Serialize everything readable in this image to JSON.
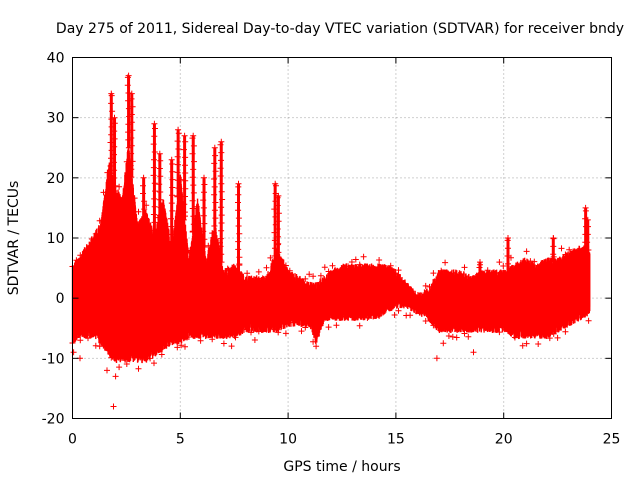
{
  "chart_data": {
    "type": "scatter",
    "title": "Day 275 of 2011, Sidereal Day-to-day VTEC variation (SDTVAR) for receiver bndy",
    "xlabel": "GPS time / hours",
    "ylabel": "SDTVAR / TECUs",
    "xlim": [
      0,
      25
    ],
    "ylim": [
      -20,
      40
    ],
    "x_ticks": [
      "0",
      "5",
      "10",
      "15",
      "20",
      "25"
    ],
    "y_ticks": [
      "-20",
      "-10",
      "0",
      "10",
      "20",
      "30",
      "40"
    ],
    "grid": true,
    "marker": "+",
    "color": "#ff0000",
    "series": [
      {
        "name": "SDTVAR",
        "description_points": "approximate envelope of dense point cloud (hours, low, high)",
        "envelope": [
          [
            0.0,
            -7,
            5
          ],
          [
            0.3,
            -6,
            6
          ],
          [
            0.6,
            -6,
            8
          ],
          [
            1.0,
            -6,
            10
          ],
          [
            1.3,
            -7,
            12
          ],
          [
            1.7,
            -9,
            22
          ],
          [
            2.0,
            -10,
            18
          ],
          [
            2.3,
            -10,
            16
          ],
          [
            2.6,
            -10,
            25
          ],
          [
            3.0,
            -10,
            12
          ],
          [
            3.4,
            -10,
            14
          ],
          [
            3.8,
            -9,
            10
          ],
          [
            4.2,
            -8,
            16
          ],
          [
            4.6,
            -7,
            8
          ],
          [
            5.0,
            -7,
            20
          ],
          [
            5.4,
            -6,
            6
          ],
          [
            5.8,
            -6,
            16
          ],
          [
            6.2,
            -6,
            6
          ],
          [
            6.6,
            -6,
            12
          ],
          [
            7.0,
            -6,
            4
          ],
          [
            7.5,
            -6,
            5
          ],
          [
            8.0,
            -5,
            3
          ],
          [
            8.5,
            -5,
            3
          ],
          [
            9.0,
            -5,
            3
          ],
          [
            9.5,
            -5,
            8
          ],
          [
            10.0,
            -4,
            4
          ],
          [
            10.5,
            -4,
            3
          ],
          [
            11.0,
            -4,
            2
          ],
          [
            11.3,
            -7,
            2
          ],
          [
            11.7,
            -3,
            3
          ],
          [
            12.0,
            -3,
            4
          ],
          [
            12.5,
            -3,
            5
          ],
          [
            13.0,
            -3,
            5
          ],
          [
            13.5,
            -3,
            5
          ],
          [
            14.0,
            -3,
            5
          ],
          [
            14.5,
            -2,
            5
          ],
          [
            15.0,
            -1,
            4
          ],
          [
            15.5,
            -1,
            2
          ],
          [
            16.0,
            -2,
            0
          ],
          [
            16.5,
            -3,
            1
          ],
          [
            17.0,
            -5,
            4
          ],
          [
            17.5,
            -5,
            4
          ],
          [
            18.0,
            -5,
            4
          ],
          [
            18.5,
            -5,
            3
          ],
          [
            19.0,
            -5,
            4
          ],
          [
            19.5,
            -5,
            4
          ],
          [
            20.0,
            -5,
            4
          ],
          [
            20.5,
            -6,
            5
          ],
          [
            21.0,
            -6,
            6
          ],
          [
            21.5,
            -6,
            5
          ],
          [
            22.0,
            -6,
            6
          ],
          [
            22.5,
            -5,
            6
          ],
          [
            23.0,
            -4,
            7
          ],
          [
            23.5,
            -3,
            8
          ],
          [
            24.0,
            -2,
            8
          ]
        ],
        "spikes": [
          [
            1.8,
            34
          ],
          [
            1.95,
            30
          ],
          [
            2.6,
            37
          ],
          [
            2.75,
            34
          ],
          [
            3.3,
            20
          ],
          [
            3.8,
            29
          ],
          [
            4.05,
            24
          ],
          [
            4.6,
            23
          ],
          [
            4.9,
            28
          ],
          [
            5.2,
            27
          ],
          [
            5.6,
            27
          ],
          [
            6.1,
            20
          ],
          [
            6.6,
            25
          ],
          [
            6.9,
            26
          ],
          [
            7.7,
            19
          ],
          [
            9.4,
            19
          ],
          [
            9.55,
            17
          ],
          [
            18.9,
            6
          ],
          [
            20.2,
            10
          ],
          [
            22.3,
            10
          ],
          [
            23.8,
            15
          ],
          [
            23.9,
            13
          ]
        ],
        "outliers": [
          [
            1.9,
            -18
          ],
          [
            1.6,
            -12
          ],
          [
            2.0,
            -13
          ],
          [
            0.05,
            -9
          ],
          [
            11.3,
            -8
          ],
          [
            16.9,
            -10
          ],
          [
            17.2,
            -7.5
          ],
          [
            18.6,
            -9
          ],
          [
            0.35,
            -10
          ]
        ]
      }
    ]
  }
}
